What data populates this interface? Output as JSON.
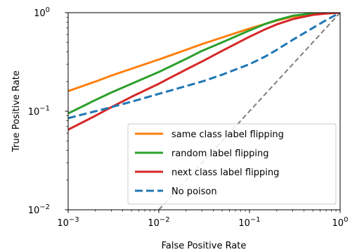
{
  "chart_data": {
    "type": "line",
    "xlabel": "False Positive Rate",
    "ylabel": "True Positive Rate",
    "xscale": "log",
    "yscale": "log",
    "xlim": [
      0.001,
      1
    ],
    "ylim": [
      0.01,
      1
    ],
    "x_ticks": [
      {
        "value": 0.001,
        "base": "10",
        "exp": "−3"
      },
      {
        "value": 0.01,
        "base": "10",
        "exp": "−2"
      },
      {
        "value": 0.1,
        "base": "10",
        "exp": "−1"
      },
      {
        "value": 1,
        "base": "10",
        "exp": "0"
      }
    ],
    "y_ticks": [
      {
        "value": 0.01,
        "base": "10",
        "exp": "−2"
      },
      {
        "value": 0.1,
        "base": "10",
        "exp": "−1"
      },
      {
        "value": 1,
        "base": "10",
        "exp": "0"
      }
    ],
    "grid": false,
    "legend_position": "lower-right",
    "diagonal": {
      "color": "#7f7f7f",
      "style": "dashed"
    },
    "series": [
      {
        "name": "same class label flipping",
        "color": "#ff7f0e",
        "style": "solid",
        "x": [
          0.001,
          0.002,
          0.003,
          0.005,
          0.01,
          0.02,
          0.03,
          0.05,
          0.1,
          0.15,
          0.2,
          0.3,
          0.5,
          0.7,
          1.0
        ],
        "y": [
          0.16,
          0.2,
          0.23,
          0.27,
          0.335,
          0.42,
          0.48,
          0.56,
          0.69,
          0.77,
          0.83,
          0.91,
          0.97,
          0.99,
          1.0
        ]
      },
      {
        "name": "random label flipping",
        "color": "#2ca02c",
        "style": "solid",
        "x": [
          0.001,
          0.002,
          0.003,
          0.005,
          0.01,
          0.02,
          0.03,
          0.05,
          0.1,
          0.15,
          0.2,
          0.3,
          0.5,
          0.7,
          1.0
        ],
        "y": [
          0.095,
          0.13,
          0.155,
          0.19,
          0.25,
          0.34,
          0.41,
          0.5,
          0.66,
          0.77,
          0.84,
          0.93,
          0.985,
          0.995,
          1.0
        ]
      },
      {
        "name": "next class label flipping",
        "color": "#d62728",
        "style": "solid",
        "x": [
          0.001,
          0.002,
          0.003,
          0.005,
          0.01,
          0.02,
          0.03,
          0.05,
          0.1,
          0.15,
          0.2,
          0.3,
          0.5,
          0.7,
          1.0
        ],
        "y": [
          0.065,
          0.09,
          0.11,
          0.14,
          0.19,
          0.265,
          0.32,
          0.41,
          0.57,
          0.68,
          0.76,
          0.86,
          0.95,
          0.98,
          1.0
        ]
      },
      {
        "name": "No poison",
        "color": "#1f77b4",
        "style": "dashed",
        "x": [
          0.001,
          0.002,
          0.003,
          0.005,
          0.01,
          0.02,
          0.03,
          0.05,
          0.1,
          0.15,
          0.2,
          0.3,
          0.5,
          0.7,
          1.0
        ],
        "y": [
          0.085,
          0.1,
          0.11,
          0.125,
          0.15,
          0.18,
          0.2,
          0.235,
          0.3,
          0.36,
          0.42,
          0.53,
          0.7,
          0.84,
          1.0
        ]
      }
    ]
  }
}
